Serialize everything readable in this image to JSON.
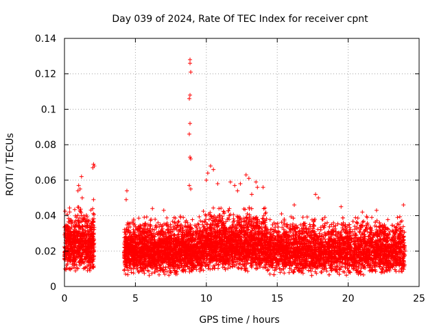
{
  "chart_data": {
    "type": "scatter",
    "title": "Day 039 of 2024, Rate Of TEC Index for receiver cpnt",
    "xlabel": "GPS time / hours",
    "ylabel": "ROTI / TECUs",
    "xlim": [
      0,
      25
    ],
    "ylim": [
      0,
      0.14
    ],
    "grid": true,
    "marker": "plus",
    "color": "#ff0000",
    "x_ticks": [
      0,
      5,
      10,
      15,
      20,
      25
    ],
    "x_tick_labels": [
      "0",
      "5",
      "10",
      "15",
      "20",
      "25"
    ],
    "y_ticks": [
      0,
      0.02,
      0.04,
      0.06,
      0.08,
      0.1,
      0.12,
      0.14
    ],
    "y_tick_labels": [
      "0",
      "0.02",
      "0.04",
      "0.06",
      "0.08",
      "0.1",
      "0.12",
      "0.14"
    ],
    "series": [
      {
        "name": "ROTI",
        "bulk_segments": [
          {
            "x_start": 0.0,
            "x_end": 2.1,
            "y_low": 0.008,
            "y_high": 0.045
          },
          {
            "x_start": 4.2,
            "x_end": 9.7,
            "y_low": 0.006,
            "y_high": 0.04
          },
          {
            "x_start": 9.7,
            "x_end": 14.3,
            "y_low": 0.008,
            "y_high": 0.045
          },
          {
            "x_start": 14.3,
            "x_end": 24.0,
            "y_low": 0.006,
            "y_high": 0.04
          }
        ],
        "outliers": [
          [
            8.85,
            0.128
          ],
          [
            8.85,
            0.126
          ],
          [
            8.9,
            0.121
          ],
          [
            8.85,
            0.108
          ],
          [
            8.8,
            0.106
          ],
          [
            8.85,
            0.092
          ],
          [
            8.8,
            0.086
          ],
          [
            8.85,
            0.073
          ],
          [
            8.9,
            0.072
          ],
          [
            2.05,
            0.069
          ],
          [
            2.1,
            0.068
          ],
          [
            2.0,
            0.067
          ],
          [
            1.2,
            0.062
          ],
          [
            1.0,
            0.057
          ],
          [
            1.1,
            0.055
          ],
          [
            0.95,
            0.054
          ],
          [
            1.25,
            0.05
          ],
          [
            2.05,
            0.049
          ],
          [
            4.4,
            0.054
          ],
          [
            4.35,
            0.049
          ],
          [
            8.8,
            0.057
          ],
          [
            8.9,
            0.055
          ],
          [
            10.3,
            0.068
          ],
          [
            10.5,
            0.066
          ],
          [
            10.1,
            0.064
          ],
          [
            10.0,
            0.06
          ],
          [
            10.8,
            0.058
          ],
          [
            11.7,
            0.059
          ],
          [
            12.0,
            0.057
          ],
          [
            12.4,
            0.058
          ],
          [
            12.8,
            0.063
          ],
          [
            13.0,
            0.061
          ],
          [
            13.5,
            0.059
          ],
          [
            13.6,
            0.056
          ],
          [
            14.0,
            0.056
          ],
          [
            12.2,
            0.054
          ],
          [
            13.2,
            0.052
          ],
          [
            17.7,
            0.052
          ],
          [
            17.9,
            0.05
          ],
          [
            16.2,
            0.046
          ],
          [
            19.5,
            0.045
          ],
          [
            23.9,
            0.046
          ],
          [
            22.0,
            0.043
          ],
          [
            21.0,
            0.042
          ],
          [
            15.3,
            0.041
          ],
          [
            6.2,
            0.044
          ],
          [
            7.0,
            0.043
          ]
        ]
      }
    ]
  }
}
